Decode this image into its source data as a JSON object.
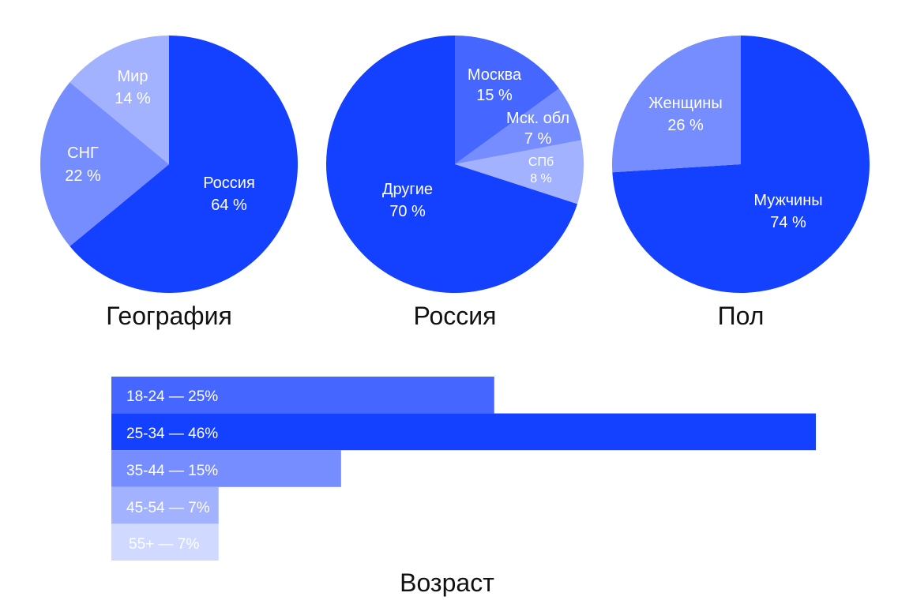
{
  "colors": {
    "c1": "#1440FF",
    "c2": "#4566FF",
    "c3": "#758DFF",
    "c4": "#A2B2FF",
    "c5": "#D0D9FF"
  },
  "chart_data": [
    {
      "type": "pie",
      "title": "География",
      "start_angle_deg": 0,
      "slices": [
        {
          "label": "Россия",
          "value": 64,
          "value_label": "64 %",
          "color": "#1440FF"
        },
        {
          "label": "СНГ",
          "value": 22,
          "value_label": "22 %",
          "color": "#758DFF"
        },
        {
          "label": "Мир",
          "value": 14,
          "value_label": "14 %",
          "color": "#A2B2FF"
        }
      ]
    },
    {
      "type": "pie",
      "title": "Россия",
      "start_angle_deg": 0,
      "slices": [
        {
          "label": "Москва",
          "value": 15,
          "value_label": "15 %",
          "color": "#4566FF"
        },
        {
          "label": "Мск. обл",
          "value": 7,
          "value_label": "7 %",
          "color": "#758DFF"
        },
        {
          "label": "СПб",
          "value": 8,
          "value_label": "8 %",
          "color": "#A2B2FF"
        },
        {
          "label": "Другие",
          "value": 70,
          "value_label": "70 %",
          "color": "#1440FF"
        }
      ]
    },
    {
      "type": "pie",
      "title": "Пол",
      "start_angle_deg": 0,
      "slices": [
        {
          "label": "Мужчины",
          "value": 74,
          "value_label": "74 %",
          "color": "#1440FF"
        },
        {
          "label": "Женщины",
          "value": 26,
          "value_label": "26 %",
          "color": "#758DFF"
        }
      ]
    },
    {
      "type": "bar",
      "orientation": "horizontal",
      "title": "Возраст",
      "xlim": [
        0,
        46
      ],
      "categories": [
        "18-24",
        "25-34",
        "35-44",
        "45-54",
        "55+"
      ],
      "values": [
        25,
        46,
        15,
        7,
        7
      ],
      "bar_labels": [
        "18-24 — 25%",
        "25-34 — 46%",
        "35-44 — 15%",
        "45-54 — 7%",
        "55+ — 7%"
      ],
      "colors": [
        "#4566FF",
        "#1440FF",
        "#758DFF",
        "#A2B2FF",
        "#D0D9FF"
      ]
    }
  ]
}
